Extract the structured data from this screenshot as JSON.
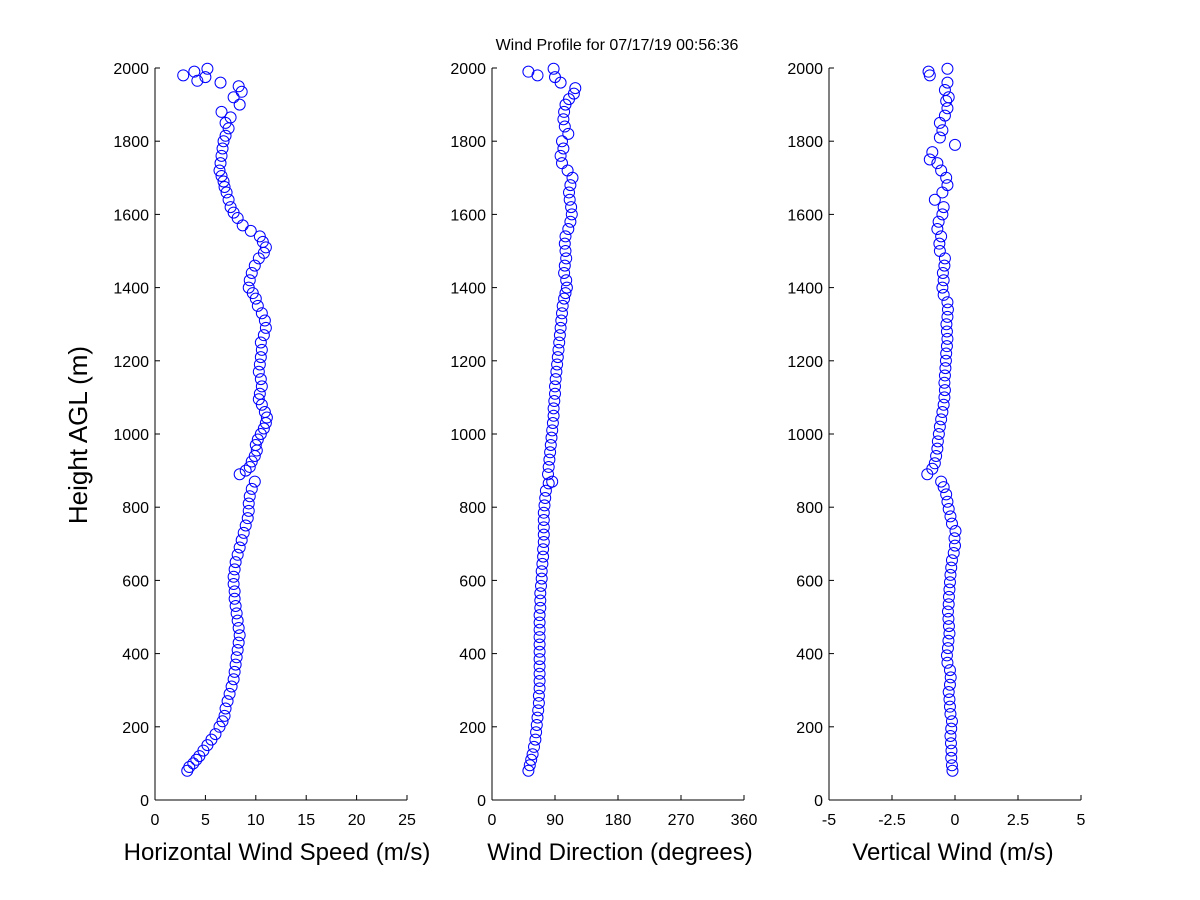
{
  "figure": {
    "title": "Wind Profile for  07/17/19 00:56:36",
    "ylabel": "Height AGL (m)",
    "marker_color": "#0000ff",
    "background": "#ffffff"
  },
  "chart_data": [
    {
      "type": "scatter",
      "xlabel": "Horizontal Wind Speed (m/s)",
      "ylabel": "Height AGL (m)",
      "xlim": [
        0,
        25
      ],
      "ylim": [
        0,
        2000
      ],
      "xticks": [
        0,
        5,
        10,
        15,
        20,
        25
      ],
      "xtick_labels": [
        "0",
        "5",
        "10",
        "15",
        "20",
        "25"
      ],
      "yticks": [
        0,
        200,
        400,
        600,
        800,
        1000,
        1200,
        1400,
        1600,
        1800,
        2000
      ],
      "ytick_labels": [
        "0",
        "200",
        "400",
        "600",
        "800",
        "1000",
        "1200",
        "1400",
        "1600",
        "1800",
        "2000"
      ],
      "grid": false,
      "marker": "open-circle",
      "points": [
        [
          3.2,
          80
        ],
        [
          3.4,
          90
        ],
        [
          3.8,
          100
        ],
        [
          4.1,
          110
        ],
        [
          4.4,
          120
        ],
        [
          4.8,
          135
        ],
        [
          5.2,
          150
        ],
        [
          5.6,
          165
        ],
        [
          6.0,
          180
        ],
        [
          6.4,
          200
        ],
        [
          6.7,
          215
        ],
        [
          6.9,
          230
        ],
        [
          7.0,
          250
        ],
        [
          7.2,
          270
        ],
        [
          7.4,
          290
        ],
        [
          7.6,
          310
        ],
        [
          7.8,
          330
        ],
        [
          7.9,
          350
        ],
        [
          8.0,
          370
        ],
        [
          8.1,
          390
        ],
        [
          8.2,
          410
        ],
        [
          8.3,
          430
        ],
        [
          8.4,
          450
        ],
        [
          8.3,
          470
        ],
        [
          8.2,
          490
        ],
        [
          8.1,
          510
        ],
        [
          8.0,
          530
        ],
        [
          7.9,
          550
        ],
        [
          7.9,
          570
        ],
        [
          7.8,
          590
        ],
        [
          7.8,
          610
        ],
        [
          7.9,
          630
        ],
        [
          8.0,
          650
        ],
        [
          8.2,
          670
        ],
        [
          8.4,
          690
        ],
        [
          8.6,
          710
        ],
        [
          8.8,
          730
        ],
        [
          9.0,
          750
        ],
        [
          9.2,
          770
        ],
        [
          9.3,
          790
        ],
        [
          9.3,
          810
        ],
        [
          9.4,
          830
        ],
        [
          9.6,
          850
        ],
        [
          9.9,
          870
        ],
        [
          8.4,
          890
        ],
        [
          9.0,
          900
        ],
        [
          9.4,
          910
        ],
        [
          9.6,
          925
        ],
        [
          9.9,
          940
        ],
        [
          10.1,
          955
        ],
        [
          10.0,
          970
        ],
        [
          10.2,
          985
        ],
        [
          10.5,
          1000
        ],
        [
          10.8,
          1015
        ],
        [
          11.0,
          1030
        ],
        [
          11.1,
          1045
        ],
        [
          10.9,
          1060
        ],
        [
          10.6,
          1080
        ],
        [
          10.3,
          1095
        ],
        [
          10.4,
          1110
        ],
        [
          10.6,
          1130
        ],
        [
          10.5,
          1150
        ],
        [
          10.3,
          1170
        ],
        [
          10.4,
          1190
        ],
        [
          10.5,
          1210
        ],
        [
          10.6,
          1230
        ],
        [
          10.5,
          1250
        ],
        [
          10.8,
          1270
        ],
        [
          11.0,
          1290
        ],
        [
          10.9,
          1310
        ],
        [
          10.6,
          1330
        ],
        [
          10.2,
          1350
        ],
        [
          10.0,
          1370
        ],
        [
          9.7,
          1385
        ],
        [
          9.3,
          1400
        ],
        [
          9.4,
          1420
        ],
        [
          9.6,
          1440
        ],
        [
          9.9,
          1460
        ],
        [
          10.3,
          1480
        ],
        [
          10.8,
          1495
        ],
        [
          11.0,
          1510
        ],
        [
          10.7,
          1525
        ],
        [
          10.4,
          1540
        ],
        [
          9.5,
          1555
        ],
        [
          8.7,
          1570
        ],
        [
          8.2,
          1590
        ],
        [
          7.8,
          1605
        ],
        [
          7.5,
          1620
        ],
        [
          7.3,
          1640
        ],
        [
          7.1,
          1660
        ],
        [
          6.9,
          1675
        ],
        [
          6.8,
          1690
        ],
        [
          6.6,
          1705
        ],
        [
          6.4,
          1720
        ],
        [
          6.5,
          1740
        ],
        [
          6.6,
          1760
        ],
        [
          6.7,
          1780
        ],
        [
          6.8,
          1800
        ],
        [
          7.0,
          1815
        ],
        [
          7.3,
          1835
        ],
        [
          7.0,
          1850
        ],
        [
          7.5,
          1865
        ],
        [
          6.6,
          1880
        ],
        [
          8.4,
          1900
        ],
        [
          7.8,
          1920
        ],
        [
          8.6,
          1935
        ],
        [
          8.3,
          1950
        ],
        [
          6.5,
          1960
        ],
        [
          4.2,
          1965
        ],
        [
          5.0,
          1975
        ],
        [
          2.8,
          1980
        ],
        [
          3.9,
          1990
        ],
        [
          5.2,
          1998
        ]
      ]
    },
    {
      "type": "scatter",
      "xlabel": "Wind Direction (degrees)",
      "ylabel": "",
      "xlim": [
        0,
        360
      ],
      "ylim": [
        0,
        2000
      ],
      "xticks": [
        0,
        90,
        180,
        270,
        360
      ],
      "xtick_labels": [
        "0",
        "90",
        "180",
        "270",
        "360"
      ],
      "yticks": [
        0,
        200,
        400,
        600,
        800,
        1000,
        1200,
        1400,
        1600,
        1800,
        2000
      ],
      "ytick_labels": [
        "0",
        "200",
        "400",
        "600",
        "800",
        "1000",
        "1200",
        "1400",
        "1600",
        "1800",
        "2000"
      ],
      "grid": false,
      "marker": "open-circle",
      "points": [
        [
          52,
          80
        ],
        [
          54,
          95
        ],
        [
          56,
          110
        ],
        [
          58,
          125
        ],
        [
          60,
          145
        ],
        [
          62,
          165
        ],
        [
          63,
          185
        ],
        [
          64,
          205
        ],
        [
          65,
          225
        ],
        [
          66,
          245
        ],
        [
          67,
          265
        ],
        [
          67,
          285
        ],
        [
          68,
          305
        ],
        [
          68,
          325
        ],
        [
          68,
          345
        ],
        [
          68,
          365
        ],
        [
          68,
          385
        ],
        [
          68,
          405
        ],
        [
          68,
          425
        ],
        [
          68,
          445
        ],
        [
          68,
          465
        ],
        [
          68,
          485
        ],
        [
          68,
          505
        ],
        [
          69,
          525
        ],
        [
          69,
          545
        ],
        [
          69,
          565
        ],
        [
          70,
          585
        ],
        [
          71,
          605
        ],
        [
          71,
          625
        ],
        [
          72,
          645
        ],
        [
          73,
          665
        ],
        [
          73,
          685
        ],
        [
          74,
          705
        ],
        [
          74,
          725
        ],
        [
          74,
          745
        ],
        [
          74,
          765
        ],
        [
          74,
          785
        ],
        [
          75,
          805
        ],
        [
          76,
          825
        ],
        [
          77,
          845
        ],
        [
          81,
          865
        ],
        [
          86,
          870
        ],
        [
          80,
          890
        ],
        [
          81,
          910
        ],
        [
          82,
          930
        ],
        [
          83,
          950
        ],
        [
          84,
          970
        ],
        [
          85,
          990
        ],
        [
          86,
          1010
        ],
        [
          87,
          1030
        ],
        [
          88,
          1050
        ],
        [
          88,
          1070
        ],
        [
          89,
          1090
        ],
        [
          90,
          1110
        ],
        [
          90,
          1130
        ],
        [
          91,
          1150
        ],
        [
          92,
          1170
        ],
        [
          93,
          1190
        ],
        [
          94,
          1210
        ],
        [
          95,
          1230
        ],
        [
          96,
          1250
        ],
        [
          97,
          1270
        ],
        [
          98,
          1290
        ],
        [
          99,
          1310
        ],
        [
          100,
          1330
        ],
        [
          101,
          1350
        ],
        [
          103,
          1370
        ],
        [
          105,
          1385
        ],
        [
          107,
          1400
        ],
        [
          106,
          1420
        ],
        [
          103,
          1440
        ],
        [
          104,
          1460
        ],
        [
          106,
          1480
        ],
        [
          105,
          1500
        ],
        [
          104,
          1520
        ],
        [
          105,
          1540
        ],
        [
          109,
          1560
        ],
        [
          112,
          1580
        ],
        [
          114,
          1600
        ],
        [
          113,
          1620
        ],
        [
          111,
          1640
        ],
        [
          110,
          1660
        ],
        [
          112,
          1680
        ],
        [
          115,
          1700
        ],
        [
          108,
          1720
        ],
        [
          100,
          1740
        ],
        [
          98,
          1760
        ],
        [
          102,
          1780
        ],
        [
          100,
          1800
        ],
        [
          109,
          1820
        ],
        [
          104,
          1840
        ],
        [
          102,
          1860
        ],
        [
          103,
          1880
        ],
        [
          105,
          1900
        ],
        [
          110,
          1915
        ],
        [
          117,
          1930
        ],
        [
          119,
          1945
        ],
        [
          98,
          1960
        ],
        [
          90,
          1975
        ],
        [
          65,
          1980
        ],
        [
          52,
          1990
        ],
        [
          88,
          1998
        ]
      ]
    },
    {
      "type": "scatter",
      "xlabel": "Vertical Wind (m/s)",
      "ylabel": "",
      "xlim": [
        -5,
        5
      ],
      "ylim": [
        0,
        2000
      ],
      "xticks": [
        -5,
        -2.5,
        0,
        2.5,
        5
      ],
      "xtick_labels": [
        "-5",
        "-2.5",
        "0",
        "2.5",
        "5"
      ],
      "yticks": [
        0,
        200,
        400,
        600,
        800,
        1000,
        1200,
        1400,
        1600,
        1800,
        2000
      ],
      "ytick_labels": [
        "0",
        "200",
        "400",
        "600",
        "800",
        "1000",
        "1200",
        "1400",
        "1600",
        "1800",
        "2000"
      ],
      "grid": false,
      "marker": "open-circle",
      "points": [
        [
          -0.1,
          80
        ],
        [
          -0.12,
          95
        ],
        [
          -0.15,
          115
        ],
        [
          -0.14,
          135
        ],
        [
          -0.16,
          155
        ],
        [
          -0.18,
          175
        ],
        [
          -0.15,
          195
        ],
        [
          -0.12,
          215
        ],
        [
          -0.18,
          235
        ],
        [
          -0.2,
          255
        ],
        [
          -0.22,
          275
        ],
        [
          -0.25,
          295
        ],
        [
          -0.2,
          315
        ],
        [
          -0.17,
          335
        ],
        [
          -0.2,
          355
        ],
        [
          -0.3,
          375
        ],
        [
          -0.32,
          395
        ],
        [
          -0.28,
          415
        ],
        [
          -0.26,
          435
        ],
        [
          -0.22,
          455
        ],
        [
          -0.24,
          475
        ],
        [
          -0.26,
          495
        ],
        [
          -0.28,
          515
        ],
        [
          -0.25,
          535
        ],
        [
          -0.24,
          555
        ],
        [
          -0.22,
          575
        ],
        [
          -0.2,
          595
        ],
        [
          -0.18,
          615
        ],
        [
          -0.15,
          635
        ],
        [
          -0.12,
          655
        ],
        [
          -0.05,
          675
        ],
        [
          0.0,
          695
        ],
        [
          -0.02,
          715
        ],
        [
          0.02,
          735
        ],
        [
          -0.12,
          755
        ],
        [
          -0.18,
          775
        ],
        [
          -0.25,
          795
        ],
        [
          -0.3,
          815
        ],
        [
          -0.35,
          835
        ],
        [
          -0.45,
          855
        ],
        [
          -0.55,
          870
        ],
        [
          -1.1,
          890
        ],
        [
          -0.9,
          905
        ],
        [
          -0.8,
          920
        ],
        [
          -0.75,
          940
        ],
        [
          -0.7,
          960
        ],
        [
          -0.68,
          980
        ],
        [
          -0.64,
          1000
        ],
        [
          -0.6,
          1020
        ],
        [
          -0.55,
          1040
        ],
        [
          -0.5,
          1060
        ],
        [
          -0.45,
          1080
        ],
        [
          -0.42,
          1100
        ],
        [
          -0.4,
          1120
        ],
        [
          -0.42,
          1140
        ],
        [
          -0.4,
          1160
        ],
        [
          -0.38,
          1180
        ],
        [
          -0.36,
          1200
        ],
        [
          -0.35,
          1220
        ],
        [
          -0.32,
          1240
        ],
        [
          -0.3,
          1260
        ],
        [
          -0.32,
          1280
        ],
        [
          -0.34,
          1300
        ],
        [
          -0.3,
          1320
        ],
        [
          -0.28,
          1340
        ],
        [
          -0.3,
          1360
        ],
        [
          -0.45,
          1380
        ],
        [
          -0.5,
          1400
        ],
        [
          -0.45,
          1420
        ],
        [
          -0.48,
          1440
        ],
        [
          -0.42,
          1460
        ],
        [
          -0.4,
          1480
        ],
        [
          -0.6,
          1500
        ],
        [
          -0.62,
          1520
        ],
        [
          -0.55,
          1540
        ],
        [
          -0.7,
          1560
        ],
        [
          -0.65,
          1580
        ],
        [
          -0.5,
          1600
        ],
        [
          -0.45,
          1620
        ],
        [
          -0.8,
          1640
        ],
        [
          -0.5,
          1660
        ],
        [
          -0.3,
          1680
        ],
        [
          -0.35,
          1700
        ],
        [
          -0.55,
          1720
        ],
        [
          -0.7,
          1740
        ],
        [
          -1.0,
          1750
        ],
        [
          -0.9,
          1770
        ],
        [
          0.0,
          1790
        ],
        [
          -0.6,
          1810
        ],
        [
          -0.5,
          1830
        ],
        [
          -0.6,
          1850
        ],
        [
          -0.4,
          1870
        ],
        [
          -0.3,
          1890
        ],
        [
          -0.35,
          1910
        ],
        [
          -0.25,
          1920
        ],
        [
          -0.4,
          1940
        ],
        [
          -0.3,
          1960
        ],
        [
          -1.0,
          1980
        ],
        [
          -1.05,
          1990
        ],
        [
          -0.3,
          1998
        ]
      ]
    }
  ]
}
